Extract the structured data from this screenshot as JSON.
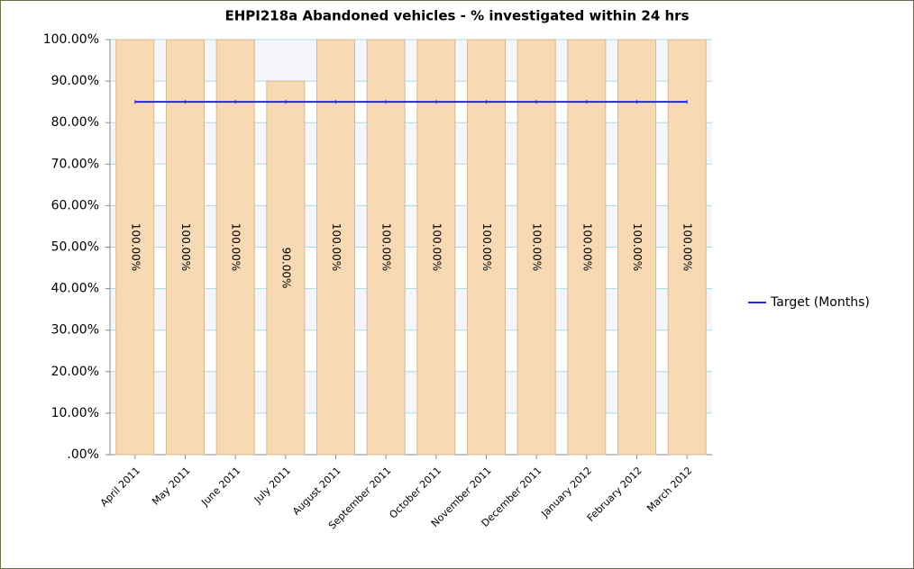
{
  "chart_data": {
    "type": "bar",
    "title": "EHPI218a Abandoned vehicles - % investigated within 24 hrs",
    "categories": [
      "April 2011",
      "May 2011",
      "June 2011",
      "July 2011",
      "August 2011",
      "September 2011",
      "October 2011",
      "November 2011",
      "December 2011",
      "January 2012",
      "February 2012",
      "March 2012"
    ],
    "series": [
      {
        "type": "bar",
        "color": "#f7d9b3",
        "values": [
          100,
          100,
          100,
          90,
          100,
          100,
          100,
          100,
          100,
          100,
          100,
          100
        ],
        "value_labels": [
          "100.00%",
          "100.00%",
          "100.00%",
          "90.00%",
          "100.00%",
          "100.00%",
          "100.00%",
          "100.00%",
          "100.00%",
          "100.00%",
          "100.00%",
          "100.00%"
        ]
      },
      {
        "type": "line",
        "name": "Target (Months)",
        "color": "#2626e8",
        "values": [
          85,
          85,
          85,
          85,
          85,
          85,
          85,
          85,
          85,
          85,
          85,
          85
        ]
      }
    ],
    "ylim": [
      0,
      100
    ],
    "yticks": [
      {
        "value": 0,
        "label": ".00%"
      },
      {
        "value": 10,
        "label": "10.00%"
      },
      {
        "value": 20,
        "label": "20.00%"
      },
      {
        "value": 30,
        "label": "30.00%"
      },
      {
        "value": 40,
        "label": "40.00%"
      },
      {
        "value": 50,
        "label": "50.00%"
      },
      {
        "value": 60,
        "label": "60.00%"
      },
      {
        "value": 70,
        "label": "70.00%"
      },
      {
        "value": 80,
        "label": "80.00%"
      },
      {
        "value": 90,
        "label": "90.00%"
      },
      {
        "value": 100,
        "label": "100.00%"
      }
    ],
    "grid": true,
    "legend": "right"
  }
}
